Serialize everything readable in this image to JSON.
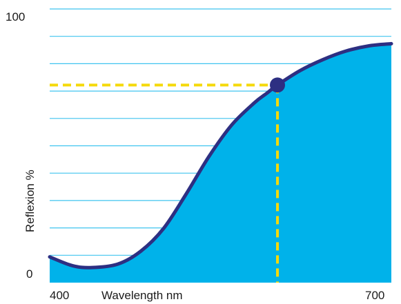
{
  "chart_data": {
    "type": "area",
    "title": "",
    "xlabel": "Wavelength nm",
    "ylabel": "Reflexion %",
    "x_ticks": [
      "400",
      "700"
    ],
    "y_ticks": [
      "0",
      "100"
    ],
    "xlim": [
      400,
      700
    ],
    "ylim": [
      0,
      100
    ],
    "grid": {
      "horizontal": true,
      "step": 10,
      "color": "#3fc4ef"
    },
    "series": [
      {
        "fill": "#00b2ea",
        "stroke": "#2d2f82",
        "x": [
          400,
          420,
          437,
          460,
          480,
          500,
          520,
          540,
          560,
          580,
          590,
          600,
          620,
          640,
          660,
          680,
          700
        ],
        "y": [
          9.4,
          6.2,
          5.5,
          6.8,
          11.5,
          19.8,
          32.5,
          46.2,
          57.7,
          65.8,
          69.0,
          72.2,
          77.5,
          81.5,
          84.6,
          86.5,
          87.3
        ]
      }
    ],
    "highlight": {
      "x": 600,
      "y": 72.2,
      "marker_color": "#2d2f82",
      "guide_color": "#f5d90a"
    }
  }
}
